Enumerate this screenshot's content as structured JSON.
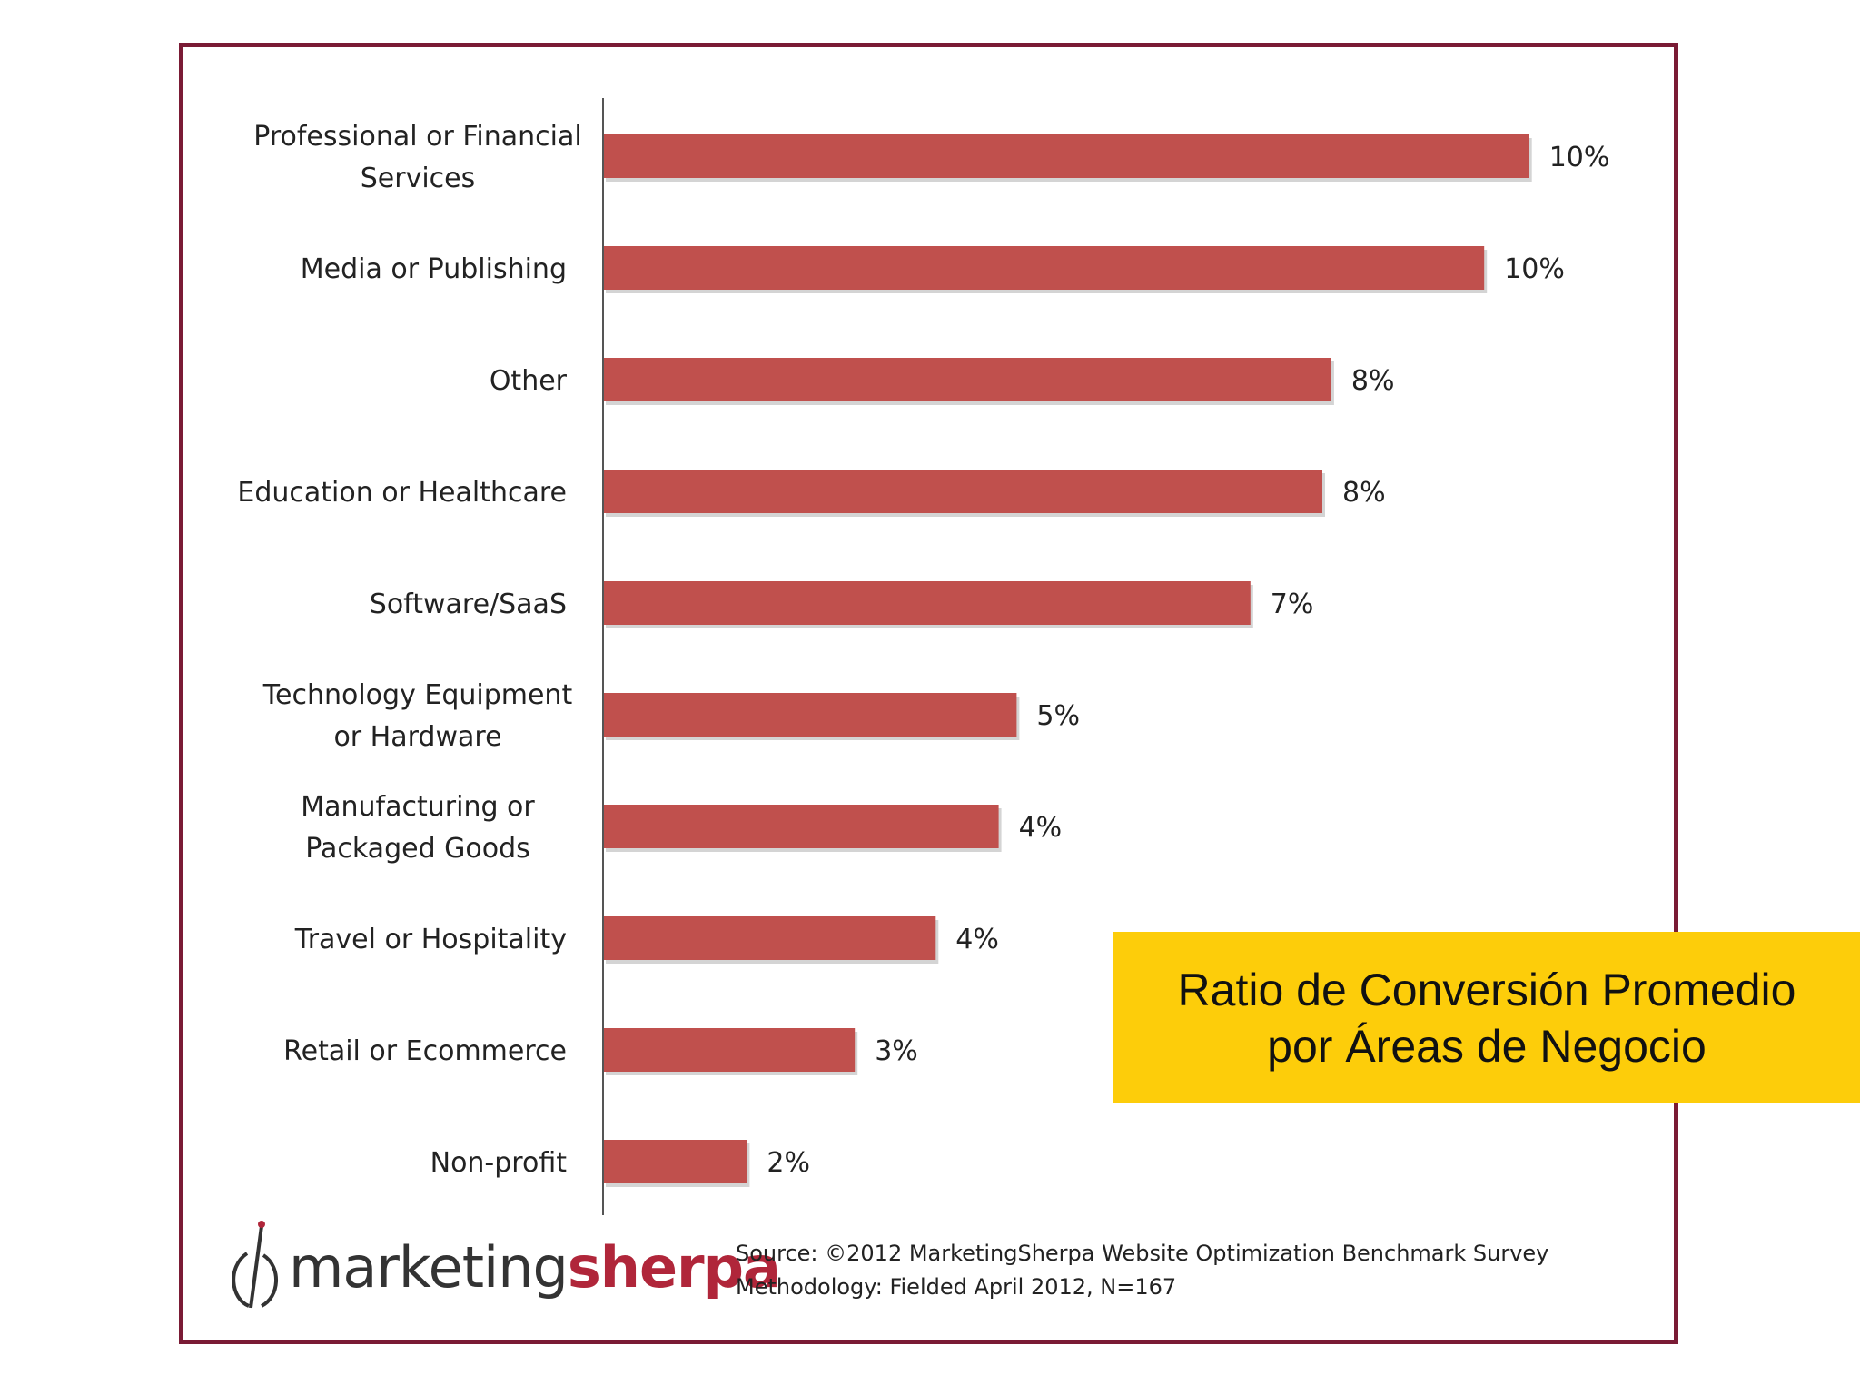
{
  "chart_data": {
    "type": "bar",
    "orientation": "horizontal",
    "categories": [
      [
        "Professional or Financial",
        "Services"
      ],
      [
        "Media or Publishing"
      ],
      [
        "Other"
      ],
      [
        "Education or Healthcare"
      ],
      [
        "Software/SaaS"
      ],
      [
        "Technology Equipment",
        "or Hardware"
      ],
      [
        "Manufacturing or",
        "Packaged Goods"
      ],
      [
        "Travel or Hospitality"
      ],
      [
        "Retail or Ecommerce"
      ],
      [
        "Non-profit"
      ]
    ],
    "values": [
      10.3,
      9.8,
      8.1,
      8.0,
      7.2,
      4.6,
      4.4,
      3.7,
      2.8,
      1.6
    ],
    "value_labels": [
      "10%",
      "10%",
      "8%",
      "8%",
      "7%",
      "5%",
      "4%",
      "4%",
      "3%",
      "2%"
    ],
    "title": "",
    "xlabel": "",
    "ylabel": "",
    "grid": false,
    "bar_color": "#c0504d"
  },
  "callout": {
    "line1": "Ratio de Conversión Promedio",
    "line2": "por Áreas de Negocio",
    "color": "#fdcd0a"
  },
  "logo": {
    "part1": "marketing",
    "part2": "sherpa"
  },
  "source": {
    "line1": "Source: ©2012 MarketingSherpa Website Optimization Benchmark Survey",
    "line2": "Methodology: Fielded April 2012, N=167"
  },
  "colors": {
    "frame": "#7a1b35",
    "brand": "#b0263a"
  }
}
